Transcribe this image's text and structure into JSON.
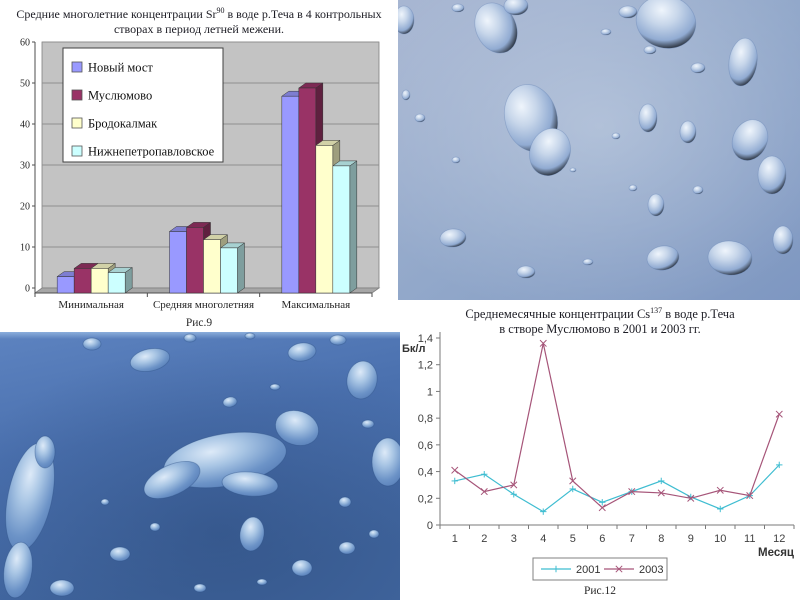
{
  "fig9": {
    "title": {
      "pre": "Средние многолетние концентрации Sr",
      "sup": "90",
      "post": " в воде р.Теча в 4 контрольных",
      "line2": "створах в период летней межени."
    },
    "caption": "Рис.9"
  },
  "fig12": {
    "title": {
      "pre": "Среднемесячные концентрации Cs",
      "sup": "137",
      "post": " в воде р.Теча",
      "line2": "в створе Муслюмово в 2001 и 2003 гг."
    },
    "caption": "Рис.12"
  },
  "photos": {
    "top_right": "water-droplets-on-light-blue-glass",
    "bottom_left": "water-droplets-on-dark-blue-glass"
  },
  "colors": {
    "plot_wall": "#c3c3c3",
    "plot_floor": "#a6a6a6",
    "gridline": "#8f8f8f",
    "axis_text": "#262626",
    "line_axis": "#7a7a7a",
    "line_text": "#3f3f3f"
  },
  "chart_data": [
    {
      "id": "fig9",
      "type": "bar",
      "title": "Средние многолетние концентрации Sr90 в воде р.Теча в 4 контрольных створах в период летней межени.",
      "categories": [
        "Минимальная",
        "Средняя многолетняя",
        "Максимальная"
      ],
      "series": [
        {
          "name": "Новый мост",
          "color": "#9999ff",
          "values": [
            4,
            15,
            48
          ]
        },
        {
          "name": "Муслюмово",
          "color": "#993366",
          "values": [
            6,
            16,
            50
          ]
        },
        {
          "name": "Бродокалмак",
          "color": "#ffffcc",
          "values": [
            6,
            13,
            36
          ]
        },
        {
          "name": "Нижнепетропавловское",
          "color": "#ccffff",
          "values": [
            5,
            11,
            31
          ]
        }
      ],
      "ylim": [
        0,
        60
      ],
      "ytick_step": 10,
      "grid": true,
      "legend_position": "upper-left-inside",
      "caption": "Рис.9"
    },
    {
      "id": "fig12",
      "type": "line",
      "title": "Среднемесячные концентрации Cs137 в воде р.Теча в створе Муслюмово в 2001 и 2003 гг.",
      "x": [
        "1",
        "2",
        "3",
        "4",
        "5",
        "6",
        "7",
        "8",
        "9",
        "10",
        "11",
        "12"
      ],
      "series": [
        {
          "name": "2001",
          "color": "#3fbdd1",
          "marker": "plus",
          "values": [
            0.33,
            0.38,
            0.23,
            0.1,
            0.27,
            0.17,
            0.25,
            0.33,
            0.21,
            0.12,
            0.22,
            0.45
          ]
        },
        {
          "name": "2003",
          "color": "#a65579",
          "marker": "x",
          "values": [
            0.41,
            0.25,
            0.3,
            1.36,
            0.33,
            0.13,
            0.25,
            0.24,
            0.2,
            0.26,
            0.22,
            0.83
          ]
        }
      ],
      "ylim": [
        0,
        1.4
      ],
      "ytick_labels": [
        "0",
        "0,2",
        "0,4",
        "0,6",
        "0,8",
        "1",
        "1,2",
        "1,4"
      ],
      "ylabel": "Бк/л",
      "xlabel": "Месяц",
      "grid": false,
      "legend_position": "bottom",
      "caption": "Рис.12"
    }
  ]
}
